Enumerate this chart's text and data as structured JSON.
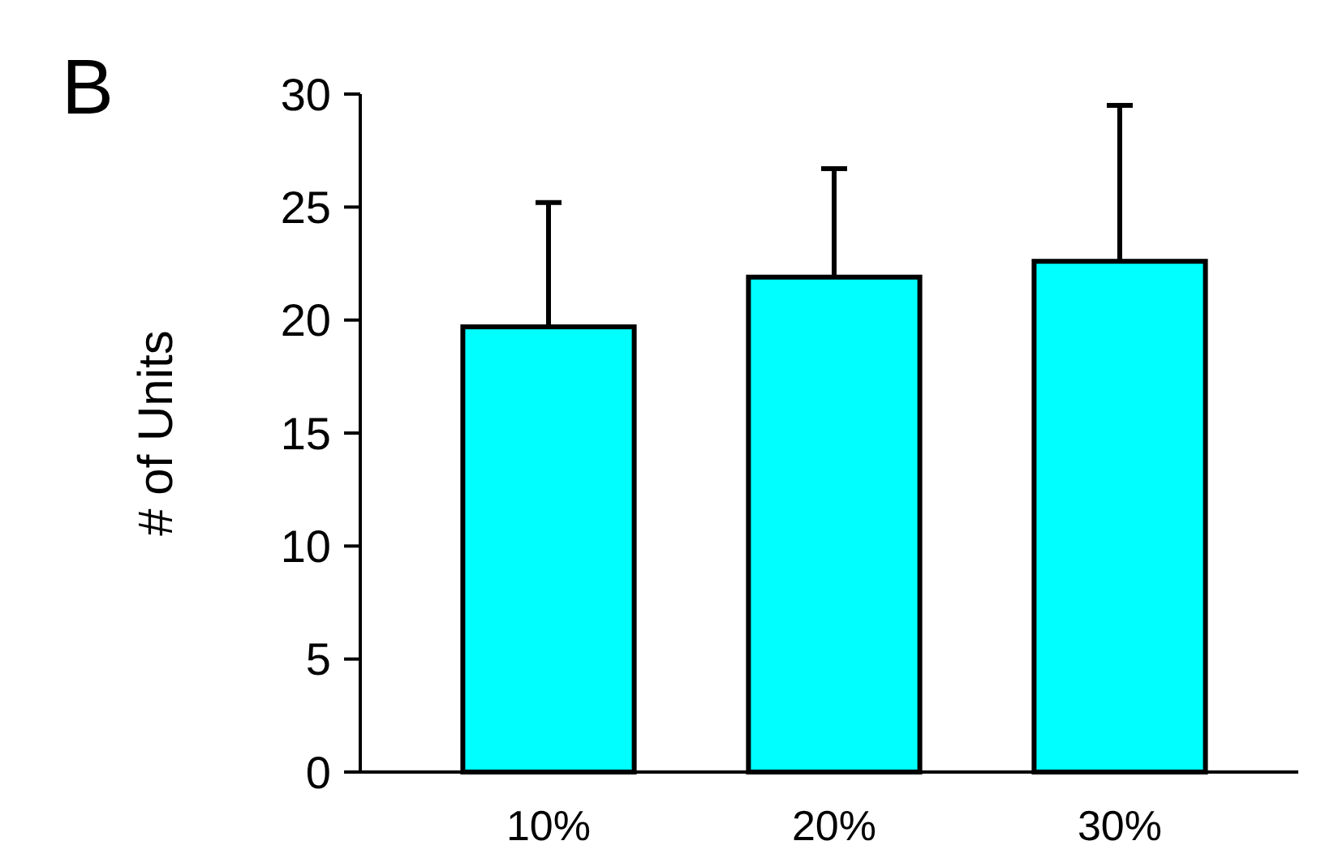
{
  "chart_data": {
    "type": "bar",
    "ylabel": "# of Units",
    "categories": [
      "10%",
      "20%",
      "30%"
    ],
    "values": [
      19.7,
      21.9,
      22.6
    ],
    "errors": [
      5.5,
      4.8,
      6.9
    ],
    "color": "#00ffff",
    "ylim": [
      0,
      30
    ],
    "yticks": [
      0,
      5,
      10,
      15,
      20,
      25,
      30
    ],
    "grid": false,
    "annotations": [
      "B"
    ]
  }
}
